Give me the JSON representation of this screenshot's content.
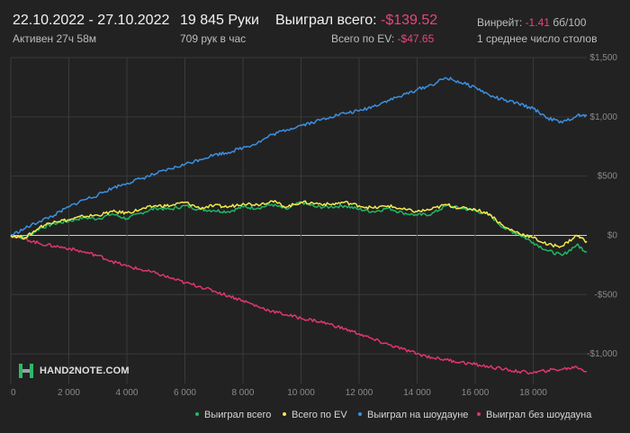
{
  "header": {
    "date_range": "22.10.2022 - 27.10.2022",
    "active_time": "Активен 27ч 58м",
    "hands": "19 845 Руки",
    "hands_per_hour": "709 рук в час",
    "won_total_label": "Выиграл всего:",
    "won_total_value": "-$139.52",
    "ev_total_label": "Всего по EV:",
    "ev_total_value": "-$47.65",
    "winrate_label": "Винрейт:",
    "winrate_value": "-1.41",
    "winrate_unit": "бб/100",
    "tables": "1 среднее число столов"
  },
  "logo": {
    "text": "HAND2NOTE.COM"
  },
  "colors": {
    "background": "#222222",
    "grid": "#3a3a3a",
    "zero_line": "#d0d0d0",
    "won_total": "#1fb865",
    "ev": "#f2e94e",
    "showdown": "#3d8fe0",
    "non_showdown": "#e0356f",
    "negative_text": "#e8467c"
  },
  "chart_data": {
    "type": "line",
    "xlim": [
      0,
      19845
    ],
    "ylim": [
      -1250,
      1500
    ],
    "x_ticks": [
      0,
      2000,
      4000,
      6000,
      8000,
      10000,
      12000,
      14000,
      16000,
      18000
    ],
    "x_tick_labels": [
      "0",
      "2 000",
      "4 000",
      "6 000",
      "8 000",
      "10 000",
      "12 000",
      "14 000",
      "16 000",
      "18 000"
    ],
    "y_ticks": [
      1500,
      1000,
      500,
      0,
      -500,
      -1000
    ],
    "y_tick_labels": [
      "$1,500",
      "$1,000",
      "$500",
      "$0",
      "-$500",
      "-$1,000"
    ],
    "grid": true,
    "legend_position": "bottom-right",
    "x": [
      0,
      500,
      1000,
      1500,
      2000,
      2500,
      3000,
      3500,
      4000,
      4500,
      5000,
      5500,
      6000,
      6500,
      7000,
      7500,
      8000,
      8500,
      9000,
      9500,
      10000,
      10500,
      11000,
      11500,
      12000,
      12500,
      13000,
      13500,
      14000,
      14500,
      15000,
      15500,
      16000,
      16500,
      17000,
      17500,
      18000,
      18500,
      19000,
      19500,
      19845
    ],
    "series": [
      {
        "name": "Выиграл всего",
        "color_key": "won_total",
        "values": [
          0,
          -20,
          60,
          100,
          120,
          150,
          140,
          180,
          140,
          190,
          230,
          220,
          250,
          220,
          210,
          200,
          240,
          230,
          260,
          220,
          280,
          240,
          240,
          250,
          220,
          200,
          230,
          190,
          170,
          180,
          250,
          230,
          210,
          170,
          60,
          10,
          -60,
          -130,
          -170,
          -80,
          -140
        ]
      },
      {
        "name": "Всего по EV",
        "color_key": "ev",
        "values": [
          0,
          -20,
          70,
          120,
          130,
          160,
          170,
          200,
          190,
          220,
          250,
          250,
          280,
          230,
          250,
          240,
          270,
          260,
          290,
          240,
          280,
          270,
          260,
          280,
          250,
          230,
          250,
          220,
          200,
          220,
          260,
          230,
          220,
          180,
          70,
          20,
          -20,
          -80,
          -90,
          0,
          -50
        ]
      },
      {
        "name": "Выиграл на шоудауне",
        "color_key": "showdown",
        "values": [
          0,
          60,
          120,
          170,
          240,
          300,
          340,
          400,
          440,
          480,
          520,
          560,
          600,
          640,
          680,
          700,
          740,
          780,
          850,
          890,
          930,
          960,
          1000,
          1030,
          1050,
          1090,
          1140,
          1180,
          1230,
          1270,
          1330,
          1290,
          1250,
          1180,
          1140,
          1110,
          1070,
          990,
          950,
          1010,
          1010
        ]
      },
      {
        "name": "Выиграл без шоудауна",
        "color_key": "non_showdown",
        "values": [
          0,
          -30,
          -70,
          -90,
          -110,
          -140,
          -170,
          -220,
          -260,
          -290,
          -320,
          -360,
          -400,
          -430,
          -470,
          -510,
          -550,
          -600,
          -640,
          -670,
          -700,
          -720,
          -750,
          -790,
          -830,
          -880,
          -920,
          -960,
          -1000,
          -1030,
          -1050,
          -1070,
          -1090,
          -1110,
          -1130,
          -1150,
          -1160,
          -1140,
          -1130,
          -1110,
          -1150
        ]
      }
    ]
  }
}
